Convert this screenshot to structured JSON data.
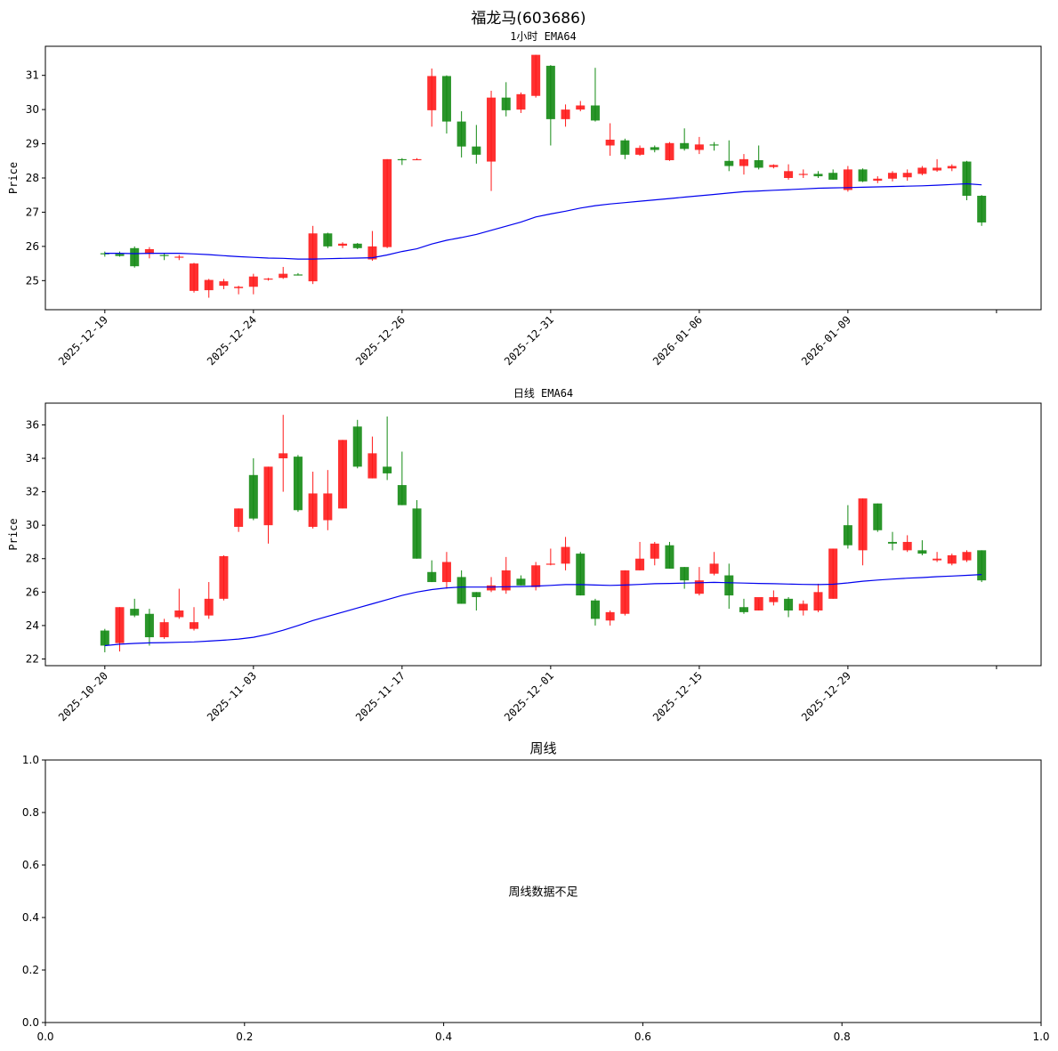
{
  "figure_title": "福龙马(603686)",
  "colors": {
    "up": "#ff1a1a",
    "down": "#138a13",
    "ema": "#0000ee",
    "axis": "#000000"
  },
  "chart_data": [
    {
      "type": "candlestick",
      "title": "1小时 EMA64",
      "ylabel": "Price",
      "ylim": [
        24.15,
        31.85
      ],
      "yticks": [
        25,
        26,
        27,
        28,
        29,
        30,
        31
      ],
      "xticklabels": [
        "2025-12-19",
        "2025-12-24",
        "2025-12-26",
        "2025-12-31",
        "2026-01-06",
        "2026-01-09",
        ""
      ],
      "xtick_index": [
        0,
        10,
        20,
        30,
        40,
        50,
        60
      ],
      "x_range": [
        -4,
        63
      ],
      "ohlc": [
        [
          25.8,
          25.85,
          25.7,
          25.78
        ],
        [
          25.78,
          25.85,
          25.7,
          25.72
        ],
        [
          25.95,
          26.0,
          25.38,
          25.42
        ],
        [
          25.78,
          25.98,
          25.65,
          25.92
        ],
        [
          25.75,
          25.8,
          25.6,
          25.72
        ],
        [
          25.68,
          25.75,
          25.6,
          25.7
        ],
        [
          24.7,
          25.52,
          24.65,
          25.5
        ],
        [
          24.72,
          25.05,
          24.5,
          25.02
        ],
        [
          24.85,
          25.05,
          24.75,
          24.98
        ],
        [
          24.78,
          24.85,
          24.6,
          24.82
        ],
        [
          24.82,
          25.2,
          24.6,
          25.12
        ],
        [
          25.04,
          25.08,
          25.0,
          25.06
        ],
        [
          25.08,
          25.4,
          25.05,
          25.2
        ],
        [
          25.18,
          25.22,
          25.15,
          25.16
        ],
        [
          24.98,
          26.6,
          24.9,
          26.38
        ],
        [
          26.38,
          26.4,
          25.95,
          26.0
        ],
        [
          26.02,
          26.12,
          25.95,
          26.08
        ],
        [
          26.08,
          26.1,
          25.92,
          25.95
        ],
        [
          25.62,
          26.45,
          25.58,
          26.0
        ],
        [
          25.98,
          28.55,
          25.95,
          28.55
        ],
        [
          28.55,
          28.58,
          28.38,
          28.52
        ],
        [
          28.55,
          28.58,
          28.52,
          28.55
        ],
        [
          29.98,
          31.2,
          29.5,
          30.98
        ],
        [
          30.98,
          31.0,
          29.3,
          29.65
        ],
        [
          29.65,
          29.95,
          28.6,
          28.92
        ],
        [
          28.92,
          29.55,
          28.42,
          28.68
        ],
        [
          28.48,
          30.55,
          27.62,
          30.35
        ],
        [
          30.35,
          30.8,
          29.8,
          29.98
        ],
        [
          30.0,
          30.5,
          29.9,
          30.45
        ],
        [
          30.4,
          31.6,
          30.35,
          31.6
        ],
        [
          31.28,
          31.3,
          28.95,
          29.72
        ],
        [
          29.72,
          30.15,
          29.5,
          30.0
        ],
        [
          30.0,
          30.25,
          29.95,
          30.12
        ],
        [
          30.12,
          31.22,
          29.65,
          29.68
        ],
        [
          28.95,
          29.6,
          28.65,
          29.12
        ],
        [
          29.1,
          29.15,
          28.55,
          28.68
        ],
        [
          28.68,
          28.95,
          28.65,
          28.88
        ],
        [
          28.9,
          28.95,
          28.75,
          28.82
        ],
        [
          28.52,
          29.05,
          28.5,
          29.02
        ],
        [
          29.02,
          29.45,
          28.8,
          28.85
        ],
        [
          28.82,
          29.2,
          28.7,
          28.98
        ],
        [
          28.98,
          29.05,
          28.8,
          28.95
        ],
        [
          28.5,
          29.1,
          28.2,
          28.35
        ],
        [
          28.35,
          28.7,
          28.1,
          28.55
        ],
        [
          28.52,
          28.95,
          28.25,
          28.3
        ],
        [
          28.32,
          28.4,
          28.28,
          28.38
        ],
        [
          28.0,
          28.4,
          27.95,
          28.2
        ],
        [
          28.1,
          28.25,
          28.0,
          28.12
        ],
        [
          28.12,
          28.2,
          28.0,
          28.05
        ],
        [
          28.15,
          28.25,
          27.95,
          27.95
        ],
        [
          27.65,
          28.35,
          27.6,
          28.25
        ],
        [
          28.25,
          28.28,
          27.88,
          27.9
        ],
        [
          27.92,
          28.05,
          27.85,
          27.98
        ],
        [
          27.98,
          28.2,
          27.9,
          28.15
        ],
        [
          28.02,
          28.25,
          27.92,
          28.15
        ],
        [
          28.12,
          28.35,
          28.08,
          28.3
        ],
        [
          28.22,
          28.55,
          28.18,
          28.3
        ],
        [
          28.28,
          28.4,
          28.2,
          28.35
        ],
        [
          28.48,
          28.5,
          27.35,
          27.48
        ],
        [
          27.48,
          27.5,
          26.6,
          26.7
        ]
      ],
      "ema": [
        25.8,
        25.8,
        25.79,
        25.8,
        25.8,
        25.8,
        25.78,
        25.76,
        25.73,
        25.7,
        25.68,
        25.66,
        25.65,
        25.63,
        25.63,
        25.64,
        25.65,
        25.66,
        25.67,
        25.75,
        25.85,
        25.93,
        26.07,
        26.18,
        26.26,
        26.35,
        26.47,
        26.59,
        26.71,
        26.86,
        26.95,
        27.03,
        27.12,
        27.19,
        27.24,
        27.28,
        27.32,
        27.36,
        27.4,
        27.44,
        27.48,
        27.52,
        27.56,
        27.6,
        27.62,
        27.64,
        27.66,
        27.68,
        27.7,
        27.71,
        27.72,
        27.73,
        27.74,
        27.75,
        27.76,
        27.77,
        27.79,
        27.81,
        27.83,
        27.8
      ]
    },
    {
      "type": "candlestick",
      "title": "日线 EMA64",
      "ylabel": "Price",
      "ylim": [
        21.6,
        37.3
      ],
      "yticks": [
        22,
        24,
        26,
        28,
        30,
        32,
        34,
        36
      ],
      "xticklabels": [
        "2025-10-20",
        "2025-11-03",
        "2025-11-17",
        "2025-12-01",
        "2025-12-15",
        "2025-12-29",
        ""
      ],
      "xtick_index": [
        0,
        10,
        20,
        30,
        40,
        50,
        60
      ],
      "x_range": [
        -4,
        63
      ],
      "ohlc": [
        [
          23.7,
          23.8,
          22.4,
          22.8
        ],
        [
          22.95,
          25.1,
          22.45,
          25.1
        ],
        [
          25.0,
          25.6,
          24.5,
          24.6
        ],
        [
          24.7,
          25.0,
          22.8,
          23.3
        ],
        [
          23.3,
          24.4,
          23.2,
          24.2
        ],
        [
          24.5,
          26.2,
          24.4,
          24.9
        ],
        [
          23.8,
          25.1,
          23.7,
          24.2
        ],
        [
          24.6,
          26.6,
          24.4,
          25.6
        ],
        [
          25.6,
          28.2,
          25.5,
          28.15
        ],
        [
          29.9,
          31.0,
          29.6,
          31.0
        ],
        [
          33.0,
          34.0,
          30.3,
          30.4
        ],
        [
          30.0,
          33.5,
          28.9,
          33.5
        ],
        [
          34.0,
          36.6,
          32.0,
          34.3
        ],
        [
          34.1,
          34.2,
          30.8,
          30.9
        ],
        [
          29.9,
          33.2,
          29.8,
          31.9
        ],
        [
          30.3,
          33.3,
          29.7,
          31.9
        ],
        [
          31.0,
          35.1,
          31.0,
          35.1
        ],
        [
          35.9,
          36.3,
          33.4,
          33.5
        ],
        [
          32.8,
          35.3,
          32.8,
          34.3
        ],
        [
          33.5,
          36.5,
          32.7,
          33.1
        ],
        [
          32.4,
          34.4,
          31.2,
          31.2
        ],
        [
          31.0,
          31.5,
          28.0,
          28.0
        ],
        [
          27.2,
          27.9,
          26.6,
          26.6
        ],
        [
          26.6,
          28.4,
          26.2,
          27.8
        ],
        [
          26.9,
          27.3,
          25.3,
          25.3
        ],
        [
          26.0,
          26.0,
          24.9,
          25.7
        ],
        [
          26.1,
          26.9,
          26.0,
          26.4
        ],
        [
          26.1,
          28.1,
          25.9,
          27.3
        ],
        [
          26.8,
          27.0,
          26.4,
          26.4
        ],
        [
          26.3,
          27.8,
          26.1,
          27.6
        ],
        [
          27.7,
          28.6,
          27.6,
          27.7
        ],
        [
          27.7,
          29.3,
          27.3,
          28.7
        ],
        [
          28.3,
          28.4,
          25.8,
          25.8
        ],
        [
          25.5,
          25.6,
          24.0,
          24.4
        ],
        [
          24.3,
          24.9,
          24.0,
          24.8
        ],
        [
          24.7,
          27.3,
          24.6,
          27.3
        ],
        [
          27.3,
          29.0,
          27.3,
          28.0
        ],
        [
          28.0,
          29.0,
          27.6,
          28.9
        ],
        [
          28.8,
          29.0,
          27.4,
          27.4
        ],
        [
          27.5,
          27.5,
          26.2,
          26.7
        ],
        [
          25.9,
          27.5,
          25.8,
          26.7
        ],
        [
          27.1,
          28.4,
          27.0,
          27.7
        ],
        [
          27.0,
          27.7,
          25.0,
          25.8
        ],
        [
          25.1,
          25.6,
          24.7,
          24.8
        ],
        [
          24.9,
          25.6,
          24.9,
          25.7
        ],
        [
          25.4,
          26.1,
          25.2,
          25.7
        ],
        [
          25.6,
          25.7,
          24.5,
          24.9
        ],
        [
          24.9,
          25.5,
          24.6,
          25.3
        ],
        [
          24.9,
          26.5,
          24.8,
          26.0
        ],
        [
          25.6,
          28.6,
          25.6,
          28.6
        ],
        [
          30.0,
          31.2,
          28.6,
          28.8
        ],
        [
          28.5,
          31.6,
          27.6,
          31.6
        ],
        [
          31.3,
          31.3,
          29.6,
          29.7
        ],
        [
          29.0,
          29.6,
          28.5,
          28.9
        ],
        [
          28.5,
          29.4,
          28.4,
          29.0
        ],
        [
          28.5,
          29.1,
          28.2,
          28.3
        ],
        [
          27.9,
          28.4,
          27.8,
          28.0
        ],
        [
          27.7,
          28.3,
          27.6,
          28.2
        ],
        [
          27.9,
          28.5,
          27.8,
          28.4
        ],
        [
          28.5,
          28.5,
          26.6,
          26.7
        ]
      ],
      "ema": [
        22.8,
        22.88,
        22.93,
        22.96,
        22.98,
        23.0,
        23.02,
        23.07,
        23.12,
        23.19,
        23.3,
        23.48,
        23.72,
        24.0,
        24.3,
        24.55,
        24.8,
        25.05,
        25.3,
        25.55,
        25.8,
        26.0,
        26.15,
        26.25,
        26.3,
        26.3,
        26.3,
        26.32,
        26.33,
        26.36,
        26.4,
        26.45,
        26.45,
        26.42,
        26.4,
        26.42,
        26.46,
        26.5,
        26.52,
        26.54,
        26.56,
        26.58,
        26.56,
        26.54,
        26.52,
        26.5,
        26.48,
        26.46,
        26.45,
        26.47,
        26.55,
        26.65,
        26.72,
        26.78,
        26.83,
        26.87,
        26.92,
        26.96,
        27.0,
        27.05
      ]
    },
    {
      "type": "empty",
      "title": "周线",
      "message": "周线数据不足",
      "xlim": [
        0,
        1
      ],
      "ylim": [
        0,
        1
      ],
      "xticks": [
        "0.0",
        "0.2",
        "0.4",
        "0.6",
        "0.8",
        "1.0"
      ],
      "yticks": [
        "0.0",
        "0.2",
        "0.4",
        "0.6",
        "0.8",
        "1.0"
      ]
    }
  ]
}
